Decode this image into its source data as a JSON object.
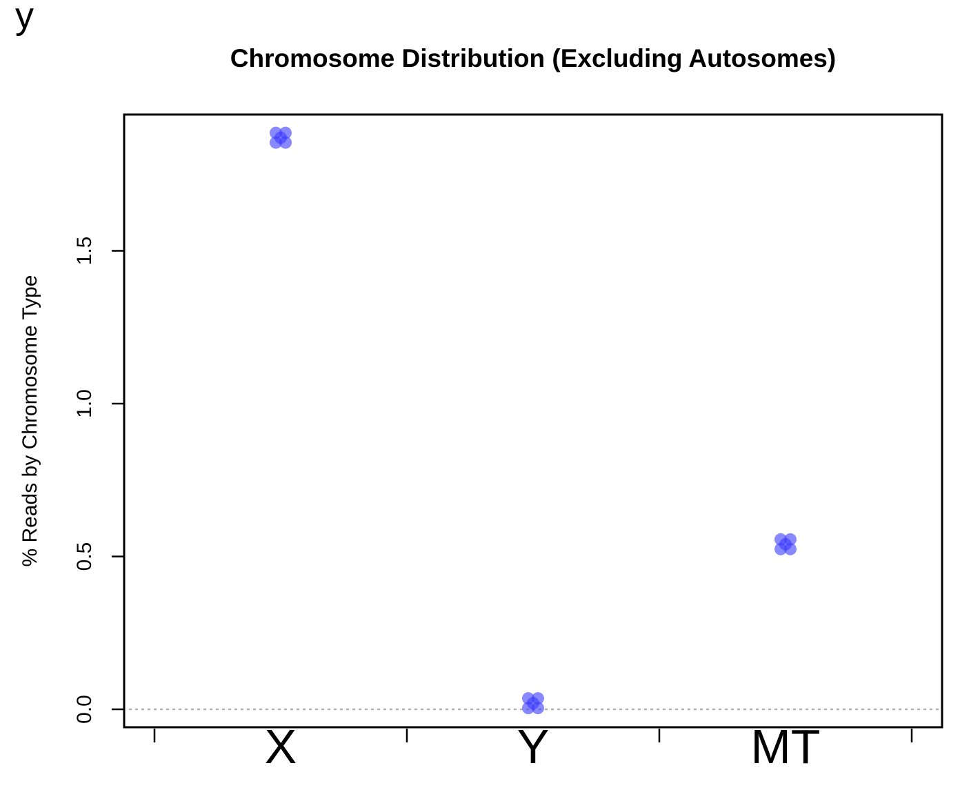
{
  "panel_label": "y",
  "chart_data": {
    "type": "scatter",
    "title": "Chromosome Distribution (Excluding Autosomes)",
    "xlabel": "",
    "ylabel": "% Reads by Chromosome Type",
    "categories": [
      "X",
      "Y",
      "MT"
    ],
    "values": [
      1.87,
      0.02,
      0.54
    ],
    "ylim": [
      -0.06,
      1.94
    ],
    "yticks": [
      0.0,
      0.5,
      1.0,
      1.5
    ],
    "ytick_labels": [
      "0.0",
      "0.5",
      "1.0",
      "1.5"
    ],
    "reference_line": 0,
    "reference_line_style": "dotted",
    "marker": "blue semi-transparent clustered dots",
    "grid": false,
    "colors": {
      "points": "#3b3bff",
      "reference_line": "#b0b0b0",
      "axis": "#000000"
    }
  }
}
